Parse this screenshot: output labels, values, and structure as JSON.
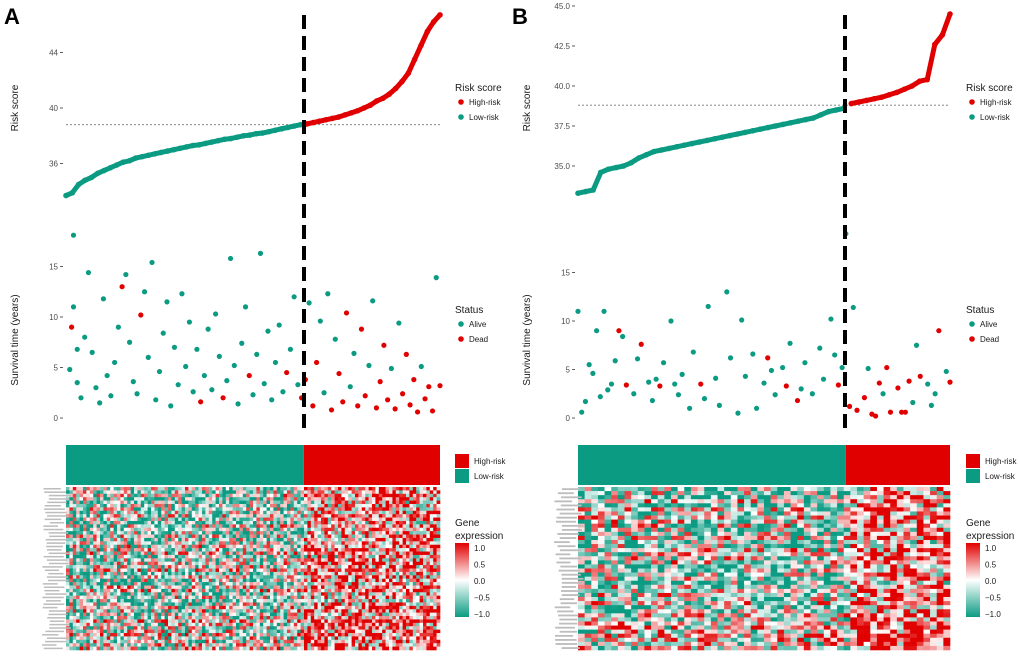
{
  "colors": {
    "high": "#E10000",
    "low": "#0A9B82",
    "white": "#FFFFFF"
  },
  "legends": {
    "risk_title": "Risk score",
    "high": "High-risk",
    "low": "Low-risk",
    "status_title": "Status",
    "alive": "Alive",
    "dead": "Dead",
    "gene_title_1": "Gene",
    "gene_title_2": "expression",
    "gene_ticks": [
      "1.0",
      "0.5",
      "0.0",
      "−0.5",
      "−1.0"
    ]
  },
  "chart_data": [
    {
      "panel": "A",
      "type": "scatter",
      "risk_plot": {
        "ylabel": "Risk score",
        "yticks": [
          36,
          40,
          44
        ],
        "ytick_labels": [
          "36",
          "40",
          "44"
        ],
        "cutoff": 38.8,
        "n_low": 38,
        "values": [
          33.7,
          33.9,
          34.5,
          34.8,
          35.0,
          35.3,
          35.5,
          35.7,
          35.9,
          36.1,
          36.2,
          36.4,
          36.5,
          36.6,
          36.7,
          36.8,
          36.9,
          37.0,
          37.1,
          37.2,
          37.3,
          37.35,
          37.45,
          37.55,
          37.65,
          37.75,
          37.8,
          37.9,
          38.0,
          38.05,
          38.15,
          38.2,
          38.3,
          38.4,
          38.5,
          38.6,
          38.7,
          38.8,
          38.85,
          38.95,
          39.05,
          39.15,
          39.25,
          39.35,
          39.5,
          39.65,
          39.8,
          40.0,
          40.2,
          40.5,
          40.7,
          41.0,
          41.4,
          41.9,
          42.5,
          43.5,
          44.5,
          45.5,
          46.2,
          46.7
        ]
      },
      "survival_plot": {
        "ylabel": "Survival time (years)",
        "yticks": [
          0,
          5,
          10,
          15
        ],
        "ytick_labels": [
          "0",
          "5",
          "10",
          "15"
        ],
        "points_rank_years_dead": [
          [
            0.01,
            4.8,
            0
          ],
          [
            0.02,
            18.1,
            0
          ],
          [
            0.02,
            11,
            0
          ],
          [
            0.015,
            9,
            1
          ],
          [
            0.03,
            6.8,
            0
          ],
          [
            0.03,
            3.5,
            0
          ],
          [
            0.04,
            2,
            0
          ],
          [
            0.05,
            8,
            0
          ],
          [
            0.06,
            14.4,
            0
          ],
          [
            0.07,
            6.5,
            0
          ],
          [
            0.08,
            3,
            0
          ],
          [
            0.09,
            1.5,
            0
          ],
          [
            0.1,
            11.8,
            0
          ],
          [
            0.11,
            4.2,
            0
          ],
          [
            0.12,
            2.2,
            0
          ],
          [
            0.13,
            5.5,
            0
          ],
          [
            0.14,
            9,
            0
          ],
          [
            0.15,
            13,
            1
          ],
          [
            0.16,
            14.2,
            0
          ],
          [
            0.17,
            7.5,
            0
          ],
          [
            0.18,
            3.6,
            0
          ],
          [
            0.19,
            2.4,
            0
          ],
          [
            0.2,
            10.2,
            1
          ],
          [
            0.21,
            12.5,
            0
          ],
          [
            0.22,
            6,
            0
          ],
          [
            0.23,
            15.4,
            0
          ],
          [
            0.24,
            1.8,
            0
          ],
          [
            0.25,
            4.6,
            0
          ],
          [
            0.26,
            8.4,
            0
          ],
          [
            0.27,
            11.5,
            0
          ],
          [
            0.28,
            1.2,
            0
          ],
          [
            0.29,
            7,
            0
          ],
          [
            0.3,
            3.3,
            0
          ],
          [
            0.31,
            12.3,
            0
          ],
          [
            0.32,
            5.1,
            0
          ],
          [
            0.33,
            9.5,
            0
          ],
          [
            0.34,
            2.6,
            0
          ],
          [
            0.35,
            6.8,
            0
          ],
          [
            0.36,
            1.6,
            1
          ],
          [
            0.37,
            4.2,
            0
          ],
          [
            0.38,
            8.8,
            0
          ],
          [
            0.39,
            2.8,
            0
          ],
          [
            0.4,
            10.3,
            0
          ],
          [
            0.41,
            6.1,
            0
          ],
          [
            0.42,
            2,
            1
          ],
          [
            0.43,
            3.7,
            0
          ],
          [
            0.44,
            15.8,
            0
          ],
          [
            0.45,
            5.2,
            0
          ],
          [
            0.46,
            1.4,
            0
          ],
          [
            0.47,
            7.4,
            0
          ],
          [
            0.48,
            11,
            0
          ],
          [
            0.49,
            4.2,
            1
          ],
          [
            0.5,
            2.3,
            0
          ],
          [
            0.51,
            6.3,
            0
          ],
          [
            0.52,
            16.3,
            0
          ],
          [
            0.53,
            3.4,
            0
          ],
          [
            0.54,
            8.6,
            0
          ],
          [
            0.55,
            1.8,
            0
          ],
          [
            0.56,
            5.5,
            0
          ],
          [
            0.57,
            9.2,
            0
          ],
          [
            0.58,
            2.6,
            0
          ],
          [
            0.59,
            4.5,
            1
          ],
          [
            0.6,
            6.8,
            0
          ],
          [
            0.61,
            12,
            0
          ],
          [
            0.62,
            3.3,
            0
          ],
          [
            0.63,
            2,
            1
          ],
          [
            0.64,
            3.8,
            1
          ],
          [
            0.65,
            11.4,
            0
          ],
          [
            0.66,
            1.2,
            1
          ],
          [
            0.67,
            5.5,
            1
          ],
          [
            0.68,
            9.6,
            0
          ],
          [
            0.69,
            2.5,
            0
          ],
          [
            0.7,
            12.3,
            0
          ],
          [
            0.71,
            0.8,
            1
          ],
          [
            0.72,
            7.8,
            0
          ],
          [
            0.73,
            4.4,
            1
          ],
          [
            0.74,
            1.6,
            1
          ],
          [
            0.75,
            10.4,
            1
          ],
          [
            0.76,
            3.1,
            0
          ],
          [
            0.77,
            6.4,
            0
          ],
          [
            0.78,
            1.2,
            1
          ],
          [
            0.79,
            8.8,
            1
          ],
          [
            0.8,
            2.2,
            1
          ],
          [
            0.81,
            5.2,
            0
          ],
          [
            0.82,
            11.6,
            0
          ],
          [
            0.83,
            1.0,
            1
          ],
          [
            0.84,
            3.6,
            1
          ],
          [
            0.85,
            7.2,
            1
          ],
          [
            0.86,
            1.8,
            1
          ],
          [
            0.87,
            4.9,
            0
          ],
          [
            0.88,
            0.9,
            1
          ],
          [
            0.89,
            9.4,
            0
          ],
          [
            0.9,
            2.4,
            1
          ],
          [
            0.91,
            6.3,
            1
          ],
          [
            0.92,
            1.3,
            1
          ],
          [
            0.93,
            3.8,
            1
          ],
          [
            0.94,
            0.6,
            1
          ],
          [
            0.95,
            5.1,
            0
          ],
          [
            0.96,
            1.9,
            1
          ],
          [
            0.97,
            3.1,
            1
          ],
          [
            0.98,
            0.7,
            1
          ],
          [
            0.99,
            13.9,
            0
          ],
          [
            1.0,
            3.2,
            1
          ]
        ]
      },
      "heatmap": {
        "rows": 48,
        "cols": 110,
        "high_fraction": 0.636,
        "range": [
          -1,
          1
        ]
      }
    },
    {
      "panel": "B",
      "type": "scatter",
      "risk_plot": {
        "ylabel": "Risk score",
        "yticks": [
          35,
          37.5,
          40,
          42.5,
          45
        ],
        "ytick_labels": [
          "35.0",
          "37.5",
          "40.0",
          "42.5",
          "45.0"
        ],
        "cutoff": 38.8,
        "n_low": 36,
        "values": [
          33.3,
          33.4,
          33.5,
          34.6,
          34.8,
          34.9,
          35.0,
          35.2,
          35.5,
          35.7,
          35.9,
          36.0,
          36.1,
          36.2,
          36.3,
          36.4,
          36.5,
          36.6,
          36.7,
          36.8,
          36.9,
          37.0,
          37.1,
          37.2,
          37.3,
          37.4,
          37.5,
          37.6,
          37.7,
          37.8,
          37.9,
          38.0,
          38.2,
          38.4,
          38.5,
          38.6,
          38.9,
          39.0,
          39.1,
          39.2,
          39.3,
          39.45,
          39.6,
          39.8,
          40.0,
          40.3,
          40.4,
          42.6,
          43.2,
          44.5
        ]
      },
      "survival_plot": {
        "ylabel": "Survival time (years)",
        "yticks": [
          0,
          5,
          10,
          15
        ],
        "ytick_labels": [
          "0",
          "5",
          "10",
          "15"
        ],
        "points_rank_years_dead": [
          [
            0.0,
            11,
            0
          ],
          [
            0.01,
            0.6,
            0
          ],
          [
            0.02,
            1.7,
            0
          ],
          [
            0.03,
            5.5,
            0
          ],
          [
            0.04,
            4.6,
            0
          ],
          [
            0.05,
            9,
            0
          ],
          [
            0.06,
            2.2,
            0
          ],
          [
            0.07,
            11,
            0
          ],
          [
            0.08,
            2.9,
            0
          ],
          [
            0.09,
            3.5,
            0
          ],
          [
            0.1,
            5.9,
            0
          ],
          [
            0.11,
            9,
            1
          ],
          [
            0.12,
            8.4,
            0
          ],
          [
            0.13,
            3.4,
            1
          ],
          [
            0.15,
            2.5,
            0
          ],
          [
            0.16,
            6.1,
            0
          ],
          [
            0.17,
            7.6,
            1
          ],
          [
            0.19,
            3.7,
            0
          ],
          [
            0.2,
            1.8,
            0
          ],
          [
            0.21,
            4,
            0
          ],
          [
            0.22,
            3.3,
            1
          ],
          [
            0.23,
            5.7,
            0
          ],
          [
            0.25,
            10,
            0
          ],
          [
            0.26,
            3.5,
            0
          ],
          [
            0.27,
            2.4,
            0
          ],
          [
            0.28,
            4.5,
            0
          ],
          [
            0.3,
            1,
            0
          ],
          [
            0.31,
            6.8,
            0
          ],
          [
            0.33,
            3.5,
            1
          ],
          [
            0.34,
            2,
            0
          ],
          [
            0.35,
            11.5,
            0
          ],
          [
            0.37,
            4.1,
            0
          ],
          [
            0.38,
            1.3,
            0
          ],
          [
            0.4,
            13,
            0
          ],
          [
            0.41,
            6.2,
            0
          ],
          [
            0.43,
            0.5,
            0
          ],
          [
            0.44,
            10.1,
            0
          ],
          [
            0.45,
            4.3,
            0
          ],
          [
            0.47,
            6.6,
            0
          ],
          [
            0.48,
            1,
            0
          ],
          [
            0.5,
            3.6,
            0
          ],
          [
            0.51,
            6.2,
            1
          ],
          [
            0.52,
            4.9,
            0
          ],
          [
            0.53,
            2.4,
            0
          ],
          [
            0.55,
            5.2,
            0
          ],
          [
            0.56,
            3.3,
            1
          ],
          [
            0.57,
            7.7,
            0
          ],
          [
            0.59,
            1.8,
            1
          ],
          [
            0.6,
            3,
            0
          ],
          [
            0.61,
            5.7,
            0
          ],
          [
            0.63,
            2.5,
            0
          ],
          [
            0.65,
            7.2,
            0
          ],
          [
            0.66,
            4,
            0
          ],
          [
            0.68,
            10.2,
            0
          ],
          [
            0.69,
            6.5,
            0
          ],
          [
            0.7,
            3.4,
            1
          ],
          [
            0.71,
            5.2,
            0
          ],
          [
            0.72,
            19,
            0
          ],
          [
            0.73,
            1.2,
            1
          ],
          [
            0.74,
            11.4,
            0
          ],
          [
            0.75,
            0.8,
            1
          ],
          [
            0.77,
            2.1,
            1
          ],
          [
            0.78,
            5.1,
            0
          ],
          [
            0.79,
            0.4,
            1
          ],
          [
            0.8,
            0.2,
            1
          ],
          [
            0.81,
            3.6,
            1
          ],
          [
            0.82,
            2.5,
            0
          ],
          [
            0.83,
            5.2,
            1
          ],
          [
            0.84,
            0.6,
            1
          ],
          [
            0.86,
            3.1,
            1
          ],
          [
            0.87,
            0.6,
            1
          ],
          [
            0.88,
            0.6,
            1
          ],
          [
            0.89,
            3.8,
            1
          ],
          [
            0.9,
            1.6,
            0
          ],
          [
            0.91,
            7.5,
            0
          ],
          [
            0.92,
            4.3,
            1
          ],
          [
            0.94,
            3.5,
            0
          ],
          [
            0.95,
            1.3,
            0
          ],
          [
            0.96,
            2.5,
            0
          ],
          [
            0.97,
            9,
            1
          ],
          [
            0.99,
            4.8,
            0
          ],
          [
            1.0,
            3.7,
            1
          ]
        ]
      },
      "heatmap": {
        "rows": 40,
        "cols": 56,
        "high_fraction": 0.72,
        "range": [
          -1,
          1
        ]
      }
    }
  ]
}
